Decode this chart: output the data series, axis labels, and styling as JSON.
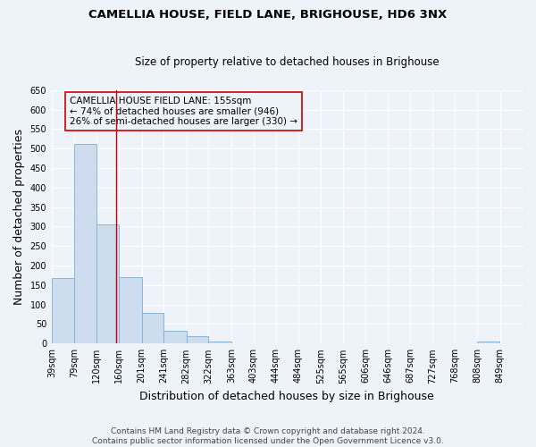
{
  "title": "CAMELLIA HOUSE, FIELD LANE, BRIGHOUSE, HD6 3NX",
  "subtitle": "Size of property relative to detached houses in Brighouse",
  "xlabel": "Distribution of detached houses by size in Brighouse",
  "ylabel": "Number of detached properties",
  "bar_left_edges": [
    39,
    79,
    120,
    160,
    201,
    241,
    282,
    322,
    363,
    403,
    444,
    484,
    525,
    565,
    606,
    646,
    687,
    727,
    768,
    808
  ],
  "bar_heights": [
    168,
    511,
    305,
    170,
    78,
    32,
    20,
    5,
    1,
    0,
    0,
    0,
    0,
    0,
    0,
    0,
    0,
    0,
    0,
    5
  ],
  "bar_color": "#cddcee",
  "bar_edgecolor": "#7bafd4",
  "ylim": [
    0,
    650
  ],
  "yticks": [
    0,
    50,
    100,
    150,
    200,
    250,
    300,
    350,
    400,
    450,
    500,
    550,
    600,
    650
  ],
  "x_tick_labels": [
    "39sqm",
    "79sqm",
    "120sqm",
    "160sqm",
    "201sqm",
    "241sqm",
    "282sqm",
    "322sqm",
    "363sqm",
    "403sqm",
    "444sqm",
    "484sqm",
    "525sqm",
    "565sqm",
    "606sqm",
    "646sqm",
    "687sqm",
    "727sqm",
    "768sqm",
    "808sqm",
    "849sqm"
  ],
  "x_tick_positions": [
    39,
    79,
    120,
    160,
    201,
    241,
    282,
    322,
    363,
    403,
    444,
    484,
    525,
    565,
    606,
    646,
    687,
    727,
    768,
    808,
    849
  ],
  "marker_x": 155,
  "marker_label_line1": "CAMELLIA HOUSE FIELD LANE: 155sqm",
  "marker_label_line2": "← 74% of detached houses are smaller (946)",
  "marker_label_line3": "26% of semi-detached houses are larger (330) →",
  "footer_line1": "Contains HM Land Registry data © Crown copyright and database right 2024.",
  "footer_line2": "Contains public sector information licensed under the Open Government Licence v3.0.",
  "bg_color": "#eef2f9",
  "plot_bg_color": "#eef2f9",
  "grid_color": "#ffffff",
  "title_fontsize": 9.5,
  "subtitle_fontsize": 8.5,
  "axis_label_fontsize": 9,
  "tick_fontsize": 7,
  "footer_fontsize": 6.5,
  "annot_fontsize": 7.5
}
